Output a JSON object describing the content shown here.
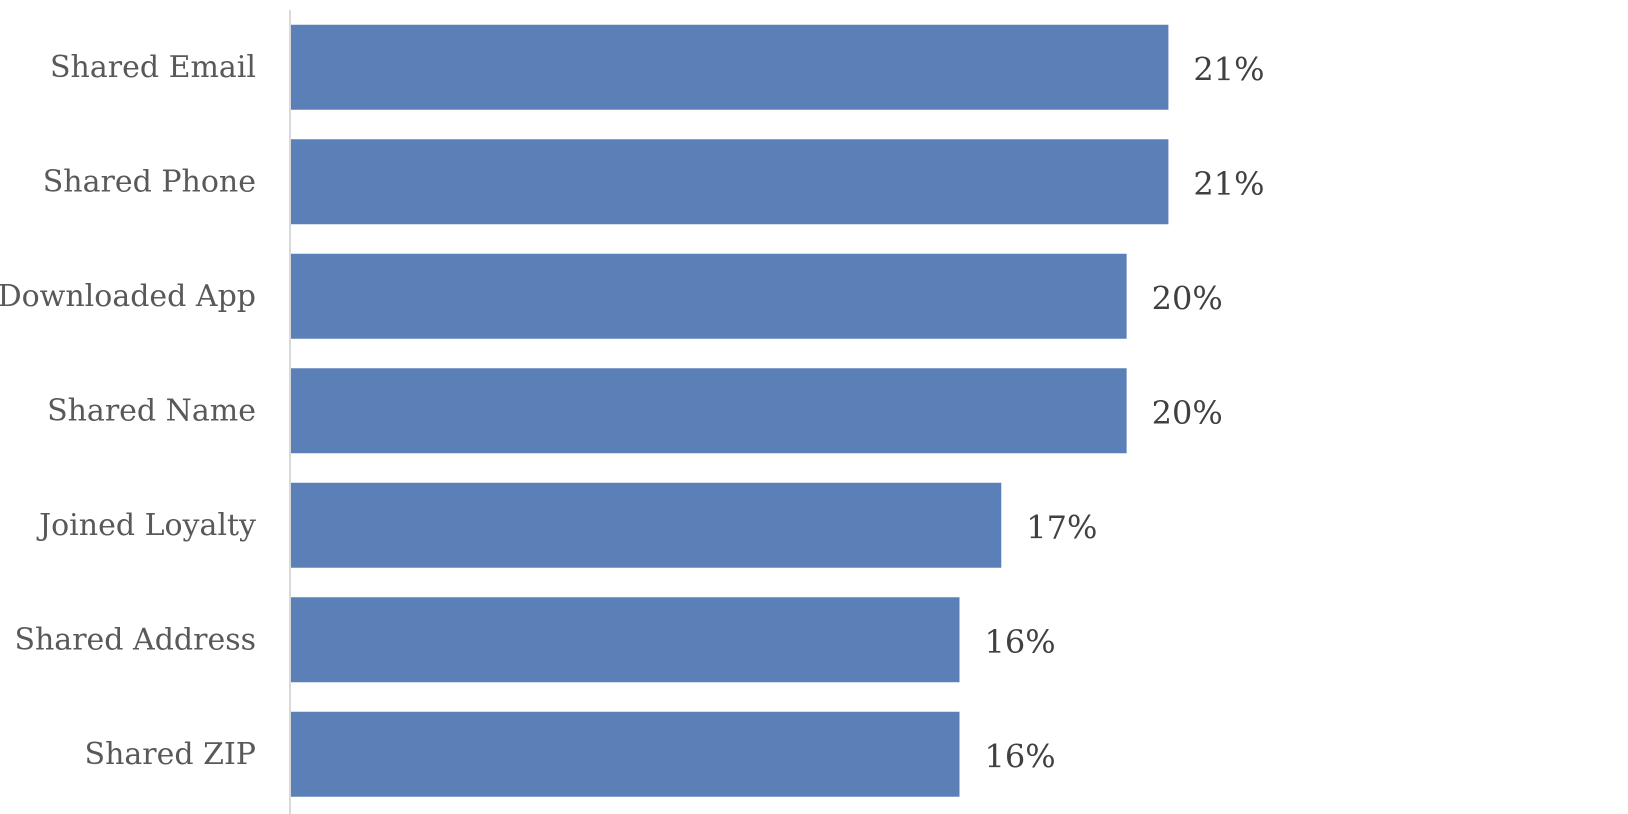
{
  "chart_data": {
    "type": "bar",
    "orientation": "horizontal",
    "categories": [
      "Shared Email",
      "Shared Phone",
      "Downloaded App",
      "Shared Name",
      "Joined Loyalty",
      "Shared Address",
      "Shared ZIP"
    ],
    "values": [
      21,
      21,
      20,
      20,
      17,
      16,
      16
    ],
    "value_labels": [
      "21%",
      "21%",
      "20%",
      "20%",
      "17%",
      "16%",
      "16%"
    ],
    "title": "",
    "xlabel": "",
    "ylabel": "",
    "xlim": [
      0,
      32
    ],
    "grid": false,
    "legend": "none",
    "bar_color": "#5a80b7",
    "axis_color": "#d9d9d9"
  }
}
